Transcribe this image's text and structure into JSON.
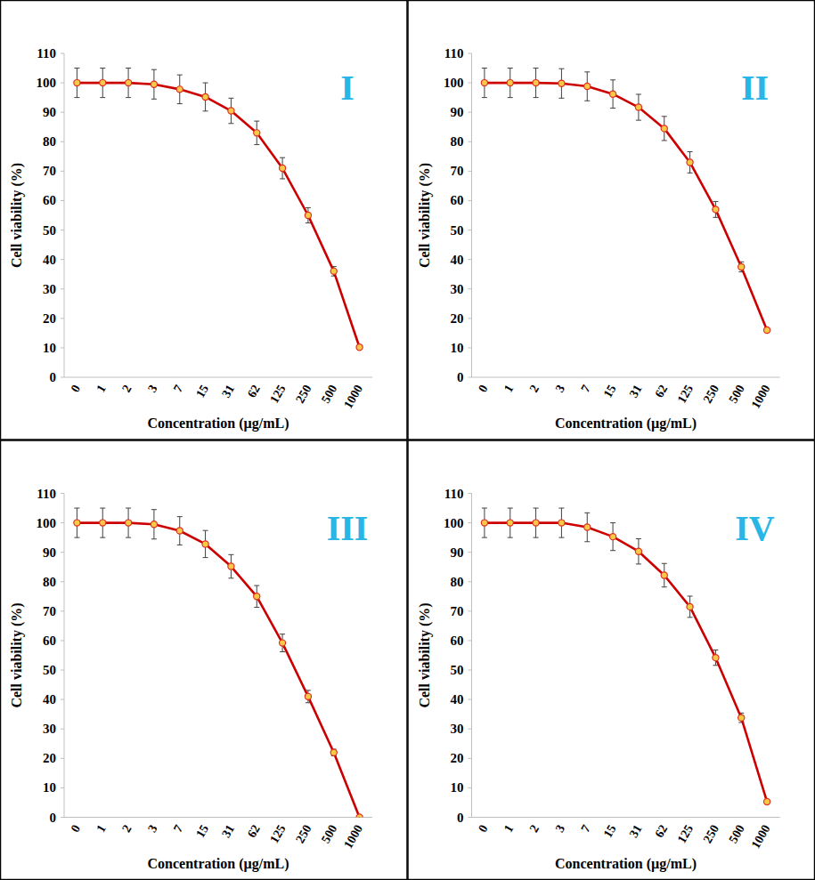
{
  "chart_data": [
    {
      "type": "line",
      "title": "I",
      "x_label": "Concentration (µg/mL)",
      "y_label": "Cell viability (%)",
      "categories": [
        "0",
        "1",
        "2",
        "3",
        "7",
        "15",
        "31",
        "62",
        "125",
        "250",
        "500",
        "1000"
      ],
      "values": [
        100,
        100,
        100,
        99.5,
        97.8,
        95.2,
        90.5,
        83,
        71,
        55,
        36,
        10.2
      ],
      "errors": [
        5,
        5,
        5,
        5,
        4.9,
        4.8,
        4.3,
        4,
        3.6,
        2.6,
        1.6,
        0.6
      ],
      "color": "#cc0000",
      "marker": "circle",
      "ylim": [
        0,
        110
      ],
      "yticks": [
        0,
        10,
        20,
        30,
        40,
        50,
        60,
        70,
        80,
        90,
        100,
        110
      ],
      "grid": false
    },
    {
      "type": "line",
      "title": "II",
      "x_label": "Concentration (µg/mL)",
      "y_label": "Cell viability (%)",
      "categories": [
        "0",
        "1",
        "2",
        "3",
        "7",
        "15",
        "31",
        "62",
        "125",
        "250",
        "500",
        "1000"
      ],
      "values": [
        100,
        100,
        100,
        99.8,
        98.8,
        96.2,
        91.7,
        84.5,
        73,
        57,
        37.5,
        16
      ],
      "errors": [
        5,
        5,
        5,
        5,
        4.9,
        4.8,
        4.4,
        4.1,
        3.6,
        2.7,
        1.7,
        0.6
      ],
      "color": "#cc0000",
      "marker": "circle",
      "ylim": [
        0,
        110
      ],
      "yticks": [
        0,
        10,
        20,
        30,
        40,
        50,
        60,
        70,
        80,
        90,
        100,
        110
      ],
      "grid": false
    },
    {
      "type": "line",
      "title": "III",
      "x_label": "Concentration (µg/mL)",
      "y_label": "Cell viability (%)",
      "categories": [
        "0",
        "1",
        "2",
        "3",
        "7",
        "15",
        "31",
        "62",
        "125",
        "250",
        "500",
        "1000"
      ],
      "values": [
        100,
        100,
        100,
        99.5,
        97.3,
        92.8,
        85.2,
        75,
        59.2,
        41,
        22,
        0
      ],
      "errors": [
        5,
        5,
        5,
        5,
        4.8,
        4.6,
        4,
        3.7,
        3,
        2.1,
        1.1,
        0.2
      ],
      "color": "#cc0000",
      "marker": "circle",
      "ylim": [
        0,
        110
      ],
      "yticks": [
        0,
        10,
        20,
        30,
        40,
        50,
        60,
        70,
        80,
        90,
        100,
        110
      ],
      "grid": false
    },
    {
      "type": "line",
      "title": "IV",
      "x_label": "Concentration (µg/mL)",
      "y_label": "Cell viability (%)",
      "categories": [
        "0",
        "1",
        "2",
        "3",
        "7",
        "15",
        "31",
        "62",
        "125",
        "250",
        "500",
        "1000"
      ],
      "values": [
        100,
        100,
        100,
        100,
        98.5,
        95.3,
        90.3,
        82.2,
        71.5,
        54.2,
        33.8,
        5.3
      ],
      "errors": [
        5,
        5,
        5,
        5,
        4.9,
        4.7,
        4.3,
        4,
        3.6,
        2.6,
        1.6,
        0.5
      ],
      "color": "#cc0000",
      "marker": "circle",
      "ylim": [
        0,
        110
      ],
      "yticks": [
        0,
        10,
        20,
        30,
        40,
        50,
        60,
        70,
        80,
        90,
        100,
        110
      ],
      "grid": false
    }
  ]
}
